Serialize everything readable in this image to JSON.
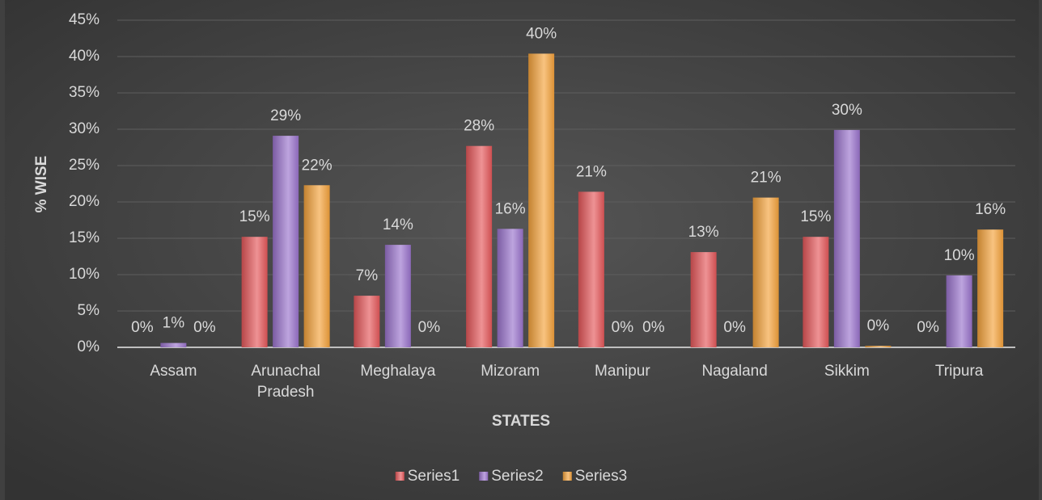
{
  "chart_data": {
    "type": "bar",
    "x_label": "STATES",
    "y_label": "% WISE",
    "categories": [
      "Assam",
      "Arunachal Pradesh",
      "Meghalaya",
      "Mizoram",
      "Manipur",
      "Nagaland",
      "Sikkim",
      "Tripura"
    ],
    "series": [
      {
        "name": "Series1",
        "color": "#e5585a",
        "values": [
          0,
          15.2,
          7.1,
          27.7,
          21.4,
          13.1,
          15.2,
          0
        ],
        "value_labels": [
          "0%",
          "15%",
          "7%",
          "28%",
          "21%",
          "13%",
          "15%",
          "0%"
        ]
      },
      {
        "name": "Series2",
        "color": "#9a73cc",
        "values": [
          0.6,
          29.1,
          14.1,
          16.3,
          0,
          0,
          29.9,
          9.9
        ],
        "value_labels": [
          "1%",
          "29%",
          "14%",
          "16%",
          "0%",
          "0%",
          "30%",
          "10%"
        ]
      },
      {
        "name": "Series3",
        "color": "#f4a23c",
        "values": [
          0,
          22.3,
          0,
          40.4,
          0,
          20.6,
          0.2,
          16.2
        ],
        "value_labels": [
          "0%",
          "22%",
          "0%",
          "40%",
          "0%",
          "21%",
          "0%",
          "16%"
        ]
      }
    ],
    "ylim": [
      0,
      45
    ],
    "yticks": [
      {
        "value": 0,
        "label": "0%"
      },
      {
        "value": 5,
        "label": "5%"
      },
      {
        "value": 10,
        "label": "10%"
      },
      {
        "value": 15,
        "label": "15%"
      },
      {
        "value": 20,
        "label": "20%"
      },
      {
        "value": 25,
        "label": "25%"
      },
      {
        "value": 30,
        "label": "30%"
      },
      {
        "value": 35,
        "label": "35%"
      },
      {
        "value": 40,
        "label": "40%"
      },
      {
        "value": 45,
        "label": "45%"
      }
    ],
    "grid": true,
    "legend": "bottom"
  }
}
